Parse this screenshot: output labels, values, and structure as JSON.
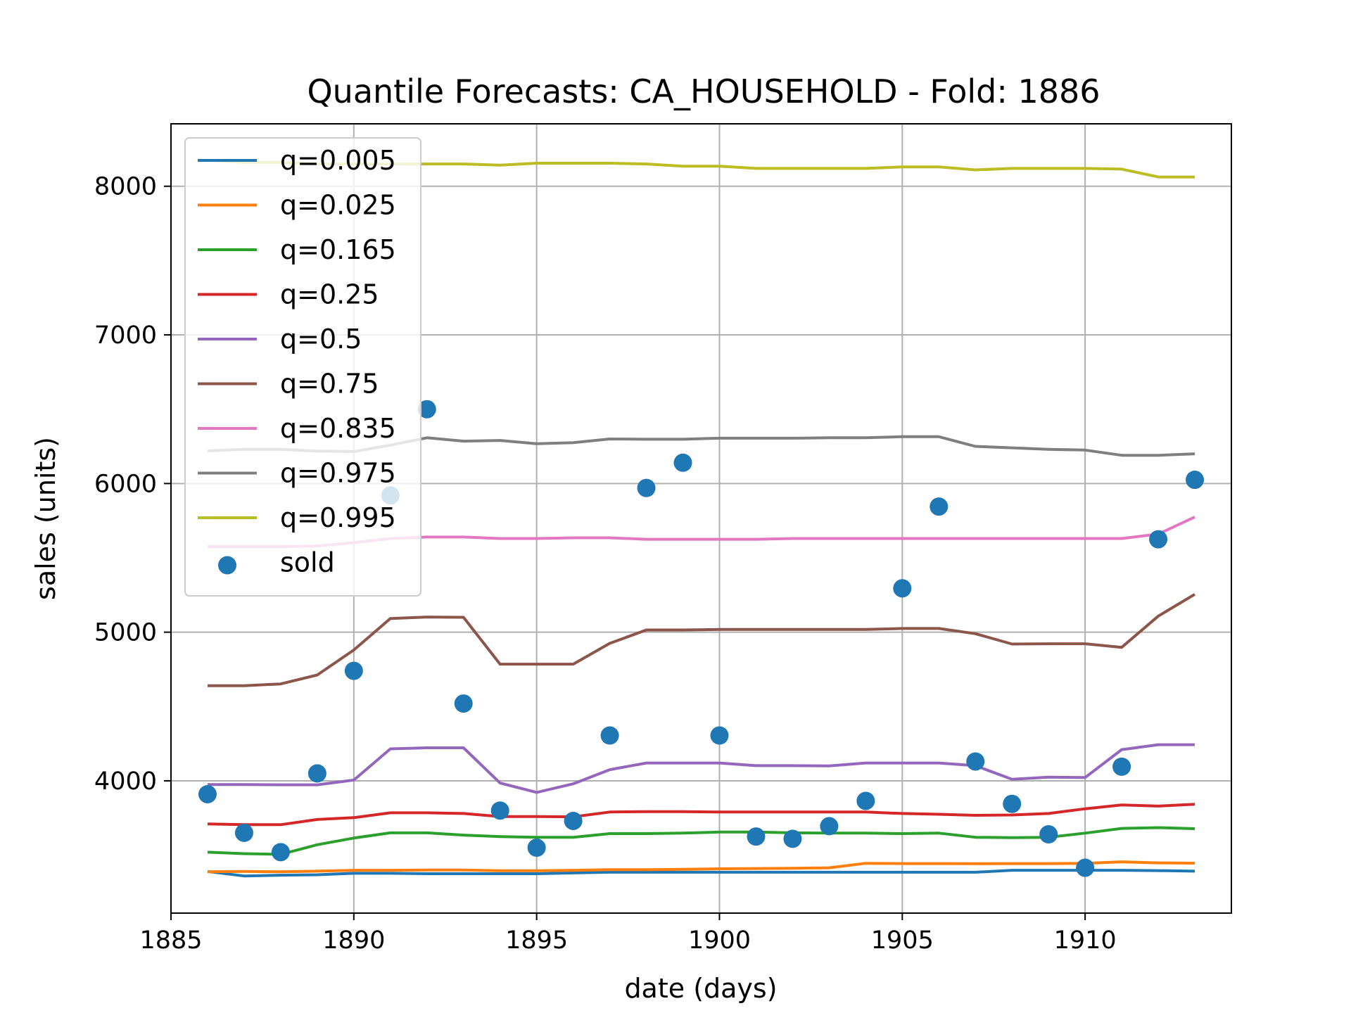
{
  "chart_data": {
    "type": "line",
    "title": "Quantile Forecasts: CA_HOUSEHOLD - Fold: 1886",
    "xlabel": "date (days)",
    "ylabel": "sales (units)",
    "xlim": [
      1885,
      1914
    ],
    "ylim": [
      3110,
      8420
    ],
    "xticks": [
      1885,
      1890,
      1895,
      1900,
      1905,
      1910
    ],
    "xtick_labels": [
      "1885",
      "1890",
      "1895",
      "1900",
      "1905",
      "1910"
    ],
    "yticks": [
      4000,
      5000,
      6000,
      7000,
      8000
    ],
    "ytick_labels": [
      "4000",
      "5000",
      "6000",
      "7000",
      "8000"
    ],
    "grid": true,
    "legend_position": "upper-left",
    "x": [
      1886,
      1887,
      1888,
      1889,
      1890,
      1891,
      1892,
      1893,
      1894,
      1895,
      1896,
      1897,
      1898,
      1899,
      1900,
      1901,
      1902,
      1903,
      1904,
      1905,
      1906,
      1907,
      1908,
      1909,
      1910,
      1911,
      1912,
      1913
    ],
    "series": [
      {
        "name": "q=0.005",
        "color": "#1f77b4",
        "values": [
          3390,
          3360,
          3365,
          3368,
          3378,
          3378,
          3375,
          3375,
          3375,
          3375,
          3380,
          3385,
          3385,
          3385,
          3385,
          3385,
          3385,
          3385,
          3385,
          3385,
          3385,
          3385,
          3398,
          3398,
          3398,
          3398,
          3396,
          3392
        ]
      },
      {
        "name": "q=0.025",
        "color": "#ff7f0e",
        "values": [
          3388,
          3390,
          3388,
          3392,
          3398,
          3398,
          3400,
          3400,
          3395,
          3395,
          3398,
          3402,
          3402,
          3405,
          3408,
          3410,
          3412,
          3415,
          3445,
          3443,
          3443,
          3442,
          3443,
          3443,
          3445,
          3455,
          3448,
          3446
        ]
      },
      {
        "name": "q=0.165",
        "color": "#2ca02c",
        "values": [
          3520,
          3510,
          3505,
          3570,
          3615,
          3650,
          3650,
          3635,
          3625,
          3620,
          3620,
          3645,
          3645,
          3648,
          3655,
          3655,
          3650,
          3648,
          3648,
          3645,
          3648,
          3620,
          3618,
          3620,
          3648,
          3680,
          3685,
          3678
        ]
      },
      {
        "name": "q=0.25",
        "color": "#d62728",
        "values": [
          3710,
          3705,
          3705,
          3740,
          3752,
          3785,
          3785,
          3780,
          3760,
          3760,
          3758,
          3790,
          3793,
          3793,
          3790,
          3790,
          3790,
          3790,
          3790,
          3780,
          3775,
          3768,
          3770,
          3780,
          3812,
          3838,
          3830,
          3842
        ]
      },
      {
        "name": "q=0.5",
        "color": "#9467bd",
        "values": [
          3975,
          3975,
          3973,
          3973,
          4005,
          4215,
          4222,
          4222,
          3985,
          3922,
          3980,
          4075,
          4120,
          4120,
          4120,
          4102,
          4102,
          4100,
          4120,
          4120,
          4120,
          4102,
          4010,
          4025,
          4022,
          4210,
          4243,
          4243
        ]
      },
      {
        "name": "q=0.75",
        "color": "#8c564b",
        "values": [
          4640,
          4640,
          4652,
          4712,
          4880,
          5092,
          5102,
          5100,
          4785,
          4785,
          4785,
          4925,
          5015,
          5015,
          5018,
          5018,
          5018,
          5018,
          5018,
          5025,
          5025,
          4990,
          4920,
          4922,
          4922,
          4898,
          5108,
          5255
        ]
      },
      {
        "name": "q=0.835",
        "color": "#e377c2",
        "values": [
          5575,
          5575,
          5575,
          5580,
          5602,
          5630,
          5640,
          5640,
          5630,
          5630,
          5635,
          5635,
          5625,
          5625,
          5625,
          5625,
          5630,
          5630,
          5630,
          5630,
          5630,
          5630,
          5630,
          5630,
          5630,
          5630,
          5660,
          5775
        ]
      },
      {
        "name": "q=0.975",
        "color": "#7f7f7f",
        "values": [
          6220,
          6230,
          6230,
          6218,
          6215,
          6258,
          6308,
          6285,
          6290,
          6268,
          6275,
          6300,
          6298,
          6298,
          6305,
          6305,
          6305,
          6308,
          6308,
          6315,
          6315,
          6250,
          6240,
          6230,
          6225,
          6190,
          6190,
          6200
        ]
      },
      {
        "name": "q=0.995",
        "color": "#bcbd22",
        "values": [
          8175,
          8160,
          8160,
          8150,
          8150,
          8150,
          8150,
          8150,
          8142,
          8155,
          8155,
          8155,
          8150,
          8135,
          8135,
          8120,
          8120,
          8120,
          8120,
          8130,
          8130,
          8110,
          8120,
          8120,
          8120,
          8115,
          8062,
          8062
        ]
      }
    ],
    "scatter": {
      "name": "sold",
      "color": "#1f77b4",
      "x": [
        1886,
        1887,
        1888,
        1889,
        1890,
        1891,
        1892,
        1893,
        1894,
        1895,
        1896,
        1897,
        1898,
        1899,
        1900,
        1901,
        1902,
        1903,
        1904,
        1905,
        1906,
        1907,
        1908,
        1909,
        1910,
        1911,
        1912,
        1913
      ],
      "y": [
        3910,
        3650,
        3520,
        4050,
        4740,
        5920,
        6500,
        4520,
        3800,
        3550,
        3730,
        4305,
        5970,
        6140,
        4305,
        3625,
        3610,
        3695,
        3865,
        5295,
        5845,
        4130,
        3845,
        3640,
        3415,
        4095,
        5625,
        6025
      ]
    }
  }
}
